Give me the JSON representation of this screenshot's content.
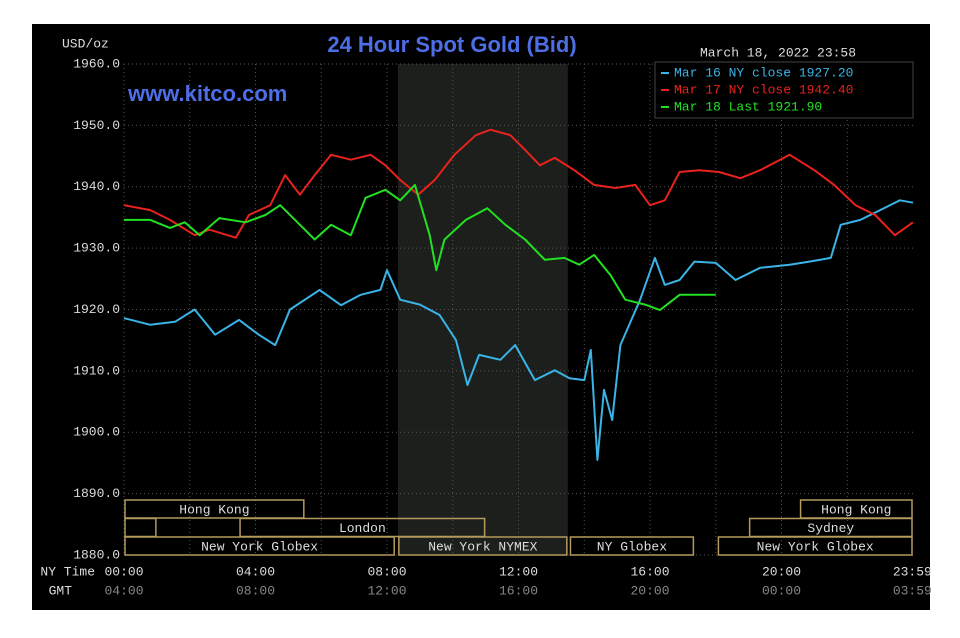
{
  "chart_data": {
    "type": "line",
    "title": "24 Hour Spot Gold (Bid)",
    "watermark": "www.kitco.com",
    "timestamp": "March 18, 2022 23:58",
    "y_label": "USD/oz",
    "x_label": "NY Time",
    "x2_label": "GMT",
    "xlim": [
      0,
      24
    ],
    "ylim": [
      1880,
      1960
    ],
    "yticks": [
      {
        "value": 1880,
        "label": "1880.0"
      },
      {
        "value": 1890,
        "label": "1890.0"
      },
      {
        "value": 1900,
        "label": "1900.0"
      },
      {
        "value": 1910,
        "label": "1910.0"
      },
      {
        "value": 1920,
        "label": "1920.0"
      },
      {
        "value": 1930,
        "label": "1930.0"
      },
      {
        "value": 1940,
        "label": "1940.0"
      },
      {
        "value": 1950,
        "label": "1950.0"
      },
      {
        "value": 1960,
        "label": "1960.0"
      }
    ],
    "xticks": [
      {
        "value": 0,
        "label": "00:00"
      },
      {
        "value": 4,
        "label": "04:00"
      },
      {
        "value": 8,
        "label": "08:00"
      },
      {
        "value": 12,
        "label": "12:00"
      },
      {
        "value": 16,
        "label": "16:00"
      },
      {
        "value": 20,
        "label": "20:00"
      },
      {
        "value": 23.98,
        "label": "23:59"
      }
    ],
    "x2ticks": [
      {
        "value": 0,
        "label": "04:00"
      },
      {
        "value": 4,
        "label": "08:00"
      },
      {
        "value": 8,
        "label": "12:00"
      },
      {
        "value": 12,
        "label": "16:00"
      },
      {
        "value": 16,
        "label": "20:00"
      },
      {
        "value": 20,
        "label": "00:00"
      },
      {
        "value": 23.98,
        "label": "03:59"
      }
    ],
    "xgrid": [
      2,
      4,
      6,
      8,
      10,
      12,
      14,
      16,
      18,
      20,
      22
    ],
    "grid": true,
    "shaded_span": [
      8.33,
      13.5
    ],
    "legend": "upper right",
    "series": [
      {
        "name": "Mar 16 NY close 1927.20",
        "color": "#3ab4e6",
        "x": [
          0,
          0.8,
          1.55,
          2.15,
          2.77,
          3.5,
          4.1,
          4.6,
          5.05,
          5.95,
          6.6,
          7.2,
          7.8,
          8.0,
          8.4,
          9.0,
          9.6,
          10.1,
          10.45,
          10.8,
          11.45,
          11.9,
          12.5,
          13.1,
          13.55,
          14.0,
          14.2,
          14.4,
          14.6,
          14.85,
          15.1,
          15.7,
          16.15,
          16.45,
          16.9,
          17.35,
          18.0,
          18.6,
          19.35,
          20.25,
          20.85,
          21.5,
          21.8,
          22.4,
          23.0,
          23.6,
          24
        ],
        "values": [
          1918.6,
          1917.5,
          1918,
          1920,
          1915.9,
          1918.3,
          1915.9,
          1914.2,
          1920,
          1923.2,
          1920.7,
          1922.4,
          1923.2,
          1926.4,
          1921.6,
          1920.8,
          1919.1,
          1915,
          1907.7,
          1912.6,
          1911.8,
          1914.2,
          1908.5,
          1910.1,
          1908.8,
          1908.5,
          1913.4,
          1895.5,
          1906.9,
          1902,
          1914.2,
          1921.6,
          1928.4,
          1924,
          1924.8,
          1927.8,
          1927.6,
          1924.8,
          1926.8,
          1927.3,
          1927.8,
          1928.4,
          1933.8,
          1934.6,
          1936.2,
          1937.8,
          1937.4
        ]
      },
      {
        "name": "Mar 17 NY close 1942.40",
        "color": "#e8221c",
        "x": [
          0,
          0.8,
          1.4,
          2.15,
          2.6,
          3.4,
          3.8,
          4.45,
          4.9,
          5.35,
          5.8,
          6.3,
          6.9,
          7.5,
          7.95,
          8.4,
          8.95,
          9.45,
          10.05,
          10.7,
          11.15,
          11.75,
          12.2,
          12.65,
          13.1,
          13.7,
          14.3,
          14.95,
          15.55,
          16.0,
          16.45,
          16.9,
          17.5,
          18.1,
          18.75,
          19.35,
          20.25,
          21.0,
          21.6,
          22.25,
          22.85,
          23.45,
          24
        ],
        "values": [
          1937,
          1936.2,
          1934.6,
          1932.1,
          1933,
          1931.7,
          1935.4,
          1937,
          1941.9,
          1938.7,
          1941.9,
          1945.2,
          1944.4,
          1945.2,
          1943.5,
          1941.1,
          1938.7,
          1941.1,
          1945.2,
          1948.4,
          1949.3,
          1948.4,
          1946,
          1943.5,
          1944.7,
          1942.7,
          1940.3,
          1939.8,
          1940.3,
          1937,
          1937.8,
          1942.4,
          1942.7,
          1942.4,
          1941.4,
          1942.7,
          1945.2,
          1942.7,
          1940.3,
          1937,
          1935.4,
          1932.1,
          1934.2
        ]
      },
      {
        "name": "Mar 18 Last 1921.90",
        "color": "#22e022",
        "x": [
          0,
          0.8,
          1.4,
          1.85,
          2.3,
          2.9,
          3.7,
          4.3,
          4.75,
          5.35,
          5.8,
          6.3,
          6.9,
          7.35,
          7.95,
          8.4,
          8.85,
          9.3,
          9.5,
          9.75,
          10.4,
          11.05,
          11.6,
          12.2,
          12.8,
          13.4,
          13.85,
          14.3,
          14.8,
          15.25,
          15.85,
          16.3,
          16.9,
          17.35,
          18.0
        ],
        "values": [
          1934.6,
          1934.6,
          1933.3,
          1934.2,
          1932.1,
          1934.9,
          1934.2,
          1935.4,
          1937,
          1933.8,
          1931.4,
          1933.8,
          1932.1,
          1938.2,
          1939.5,
          1937.8,
          1940.3,
          1932.1,
          1926.4,
          1931.4,
          1934.6,
          1936.5,
          1933.8,
          1931.4,
          1928.1,
          1928.4,
          1927.3,
          1928.9,
          1925.6,
          1921.6,
          1920.8,
          1919.9,
          1922.4,
          1922.4,
          1922.4
        ]
      }
    ],
    "sessions": [
      [
        {
          "label": "Hong Kong",
          "start": 0,
          "end": 5.5
        },
        {
          "label": "Hong Kong",
          "start": 20.55,
          "end": 24
        }
      ],
      [
        {
          "label": null,
          "start": 0,
          "end": 1.0
        },
        {
          "label": "London",
          "start": 3.5,
          "end": 11.0
        },
        {
          "label": "Sydney",
          "start": 19.0,
          "end": 24
        }
      ],
      [
        {
          "label": "New York Globex",
          "start": 0,
          "end": 8.25
        },
        {
          "label": "New York NYMEX",
          "start": 8.33,
          "end": 13.5
        },
        {
          "label": "NY Globex",
          "start": 13.55,
          "end": 17.35
        },
        {
          "label": "New York Globex",
          "start": 18.05,
          "end": 24
        }
      ]
    ]
  }
}
